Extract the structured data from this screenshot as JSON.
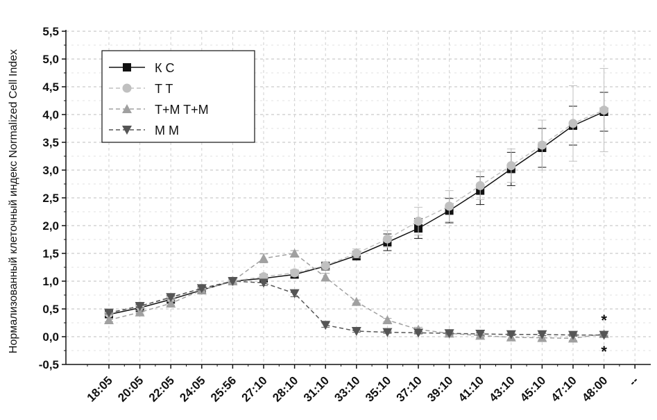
{
  "chart_data": {
    "type": "line",
    "ylabel": "Нормализованный клеточный индекс Normalized Cell Index",
    "xlabel": "",
    "categories": [
      "18:05",
      "20:05",
      "22:05",
      "24:05",
      "25:56",
      "27:10",
      "28:10",
      "31:10",
      "33:10",
      "35:10",
      "37:10",
      "39:10",
      "41:10",
      "43:10",
      "45:10",
      "47:10",
      "48:00",
      "--"
    ],
    "ylim": [
      -0.5,
      5.5
    ],
    "yticks": [
      -0.5,
      0.0,
      0.5,
      1.0,
      1.5,
      2.0,
      2.5,
      3.0,
      3.5,
      4.0,
      4.5,
      5.0,
      5.5
    ],
    "grid": true,
    "legend_position": "top-left",
    "series": [
      {
        "name": "К C",
        "color": "#111111",
        "marker": "square",
        "dash": "solid",
        "values": [
          0.4,
          0.52,
          0.67,
          0.84,
          1.0,
          1.05,
          1.12,
          1.27,
          1.46,
          1.7,
          1.95,
          2.27,
          2.63,
          3.02,
          3.4,
          3.8,
          4.05,
          null
        ],
        "errors": [
          0.02,
          0.03,
          0.03,
          0.03,
          0.0,
          0.05,
          0.06,
          0.07,
          0.08,
          0.15,
          0.18,
          0.22,
          0.25,
          0.3,
          0.35,
          0.35,
          0.35,
          null
        ]
      },
      {
        "name": "T T",
        "color": "#c0c0c0",
        "marker": "circle",
        "dash": "dashed",
        "values": [
          0.42,
          0.55,
          0.7,
          0.87,
          1.0,
          1.08,
          1.15,
          1.28,
          1.5,
          1.76,
          2.08,
          2.35,
          2.72,
          3.08,
          3.45,
          3.84,
          4.08,
          null
        ],
        "errors": [
          0.02,
          0.03,
          0.03,
          0.03,
          0.0,
          0.05,
          0.06,
          0.07,
          0.08,
          0.15,
          0.25,
          0.28,
          0.25,
          0.3,
          0.45,
          0.68,
          0.75,
          null
        ]
      },
      {
        "name": "T+M T+M",
        "color": "#a0a0a0",
        "marker": "triangle-up",
        "dash": "dashed",
        "values": [
          0.3,
          0.44,
          0.6,
          0.84,
          1.0,
          1.41,
          1.5,
          1.07,
          0.63,
          0.3,
          0.13,
          0.06,
          0.02,
          -0.01,
          -0.02,
          -0.03,
          0.05,
          null
        ],
        "errors": [
          0.03,
          0.03,
          0.03,
          0.03,
          0.0,
          0.08,
          0.05,
          0.07,
          0.03,
          0.03,
          0.04,
          0.04,
          0.03,
          0.04,
          0.04,
          0.04,
          0.03,
          null
        ]
      },
      {
        "name": "M M",
        "color": "#555555",
        "marker": "triangle-down",
        "dash": "dashed",
        "values": [
          0.43,
          0.55,
          0.71,
          0.87,
          1.0,
          0.97,
          0.78,
          0.21,
          0.1,
          0.08,
          0.07,
          0.06,
          0.05,
          0.04,
          0.04,
          0.03,
          0.03,
          null
        ],
        "errors": [
          0.02,
          0.03,
          0.03,
          0.03,
          0.0,
          0.05,
          0.06,
          0.04,
          0.02,
          0.02,
          0.02,
          0.02,
          0.02,
          0.02,
          0.02,
          0.02,
          0.02,
          null
        ]
      }
    ],
    "annotations": [
      {
        "text": "*",
        "category": "48:00",
        "y": 0.3
      },
      {
        "text": "*",
        "category": "48:00",
        "y": -0.26
      }
    ]
  }
}
